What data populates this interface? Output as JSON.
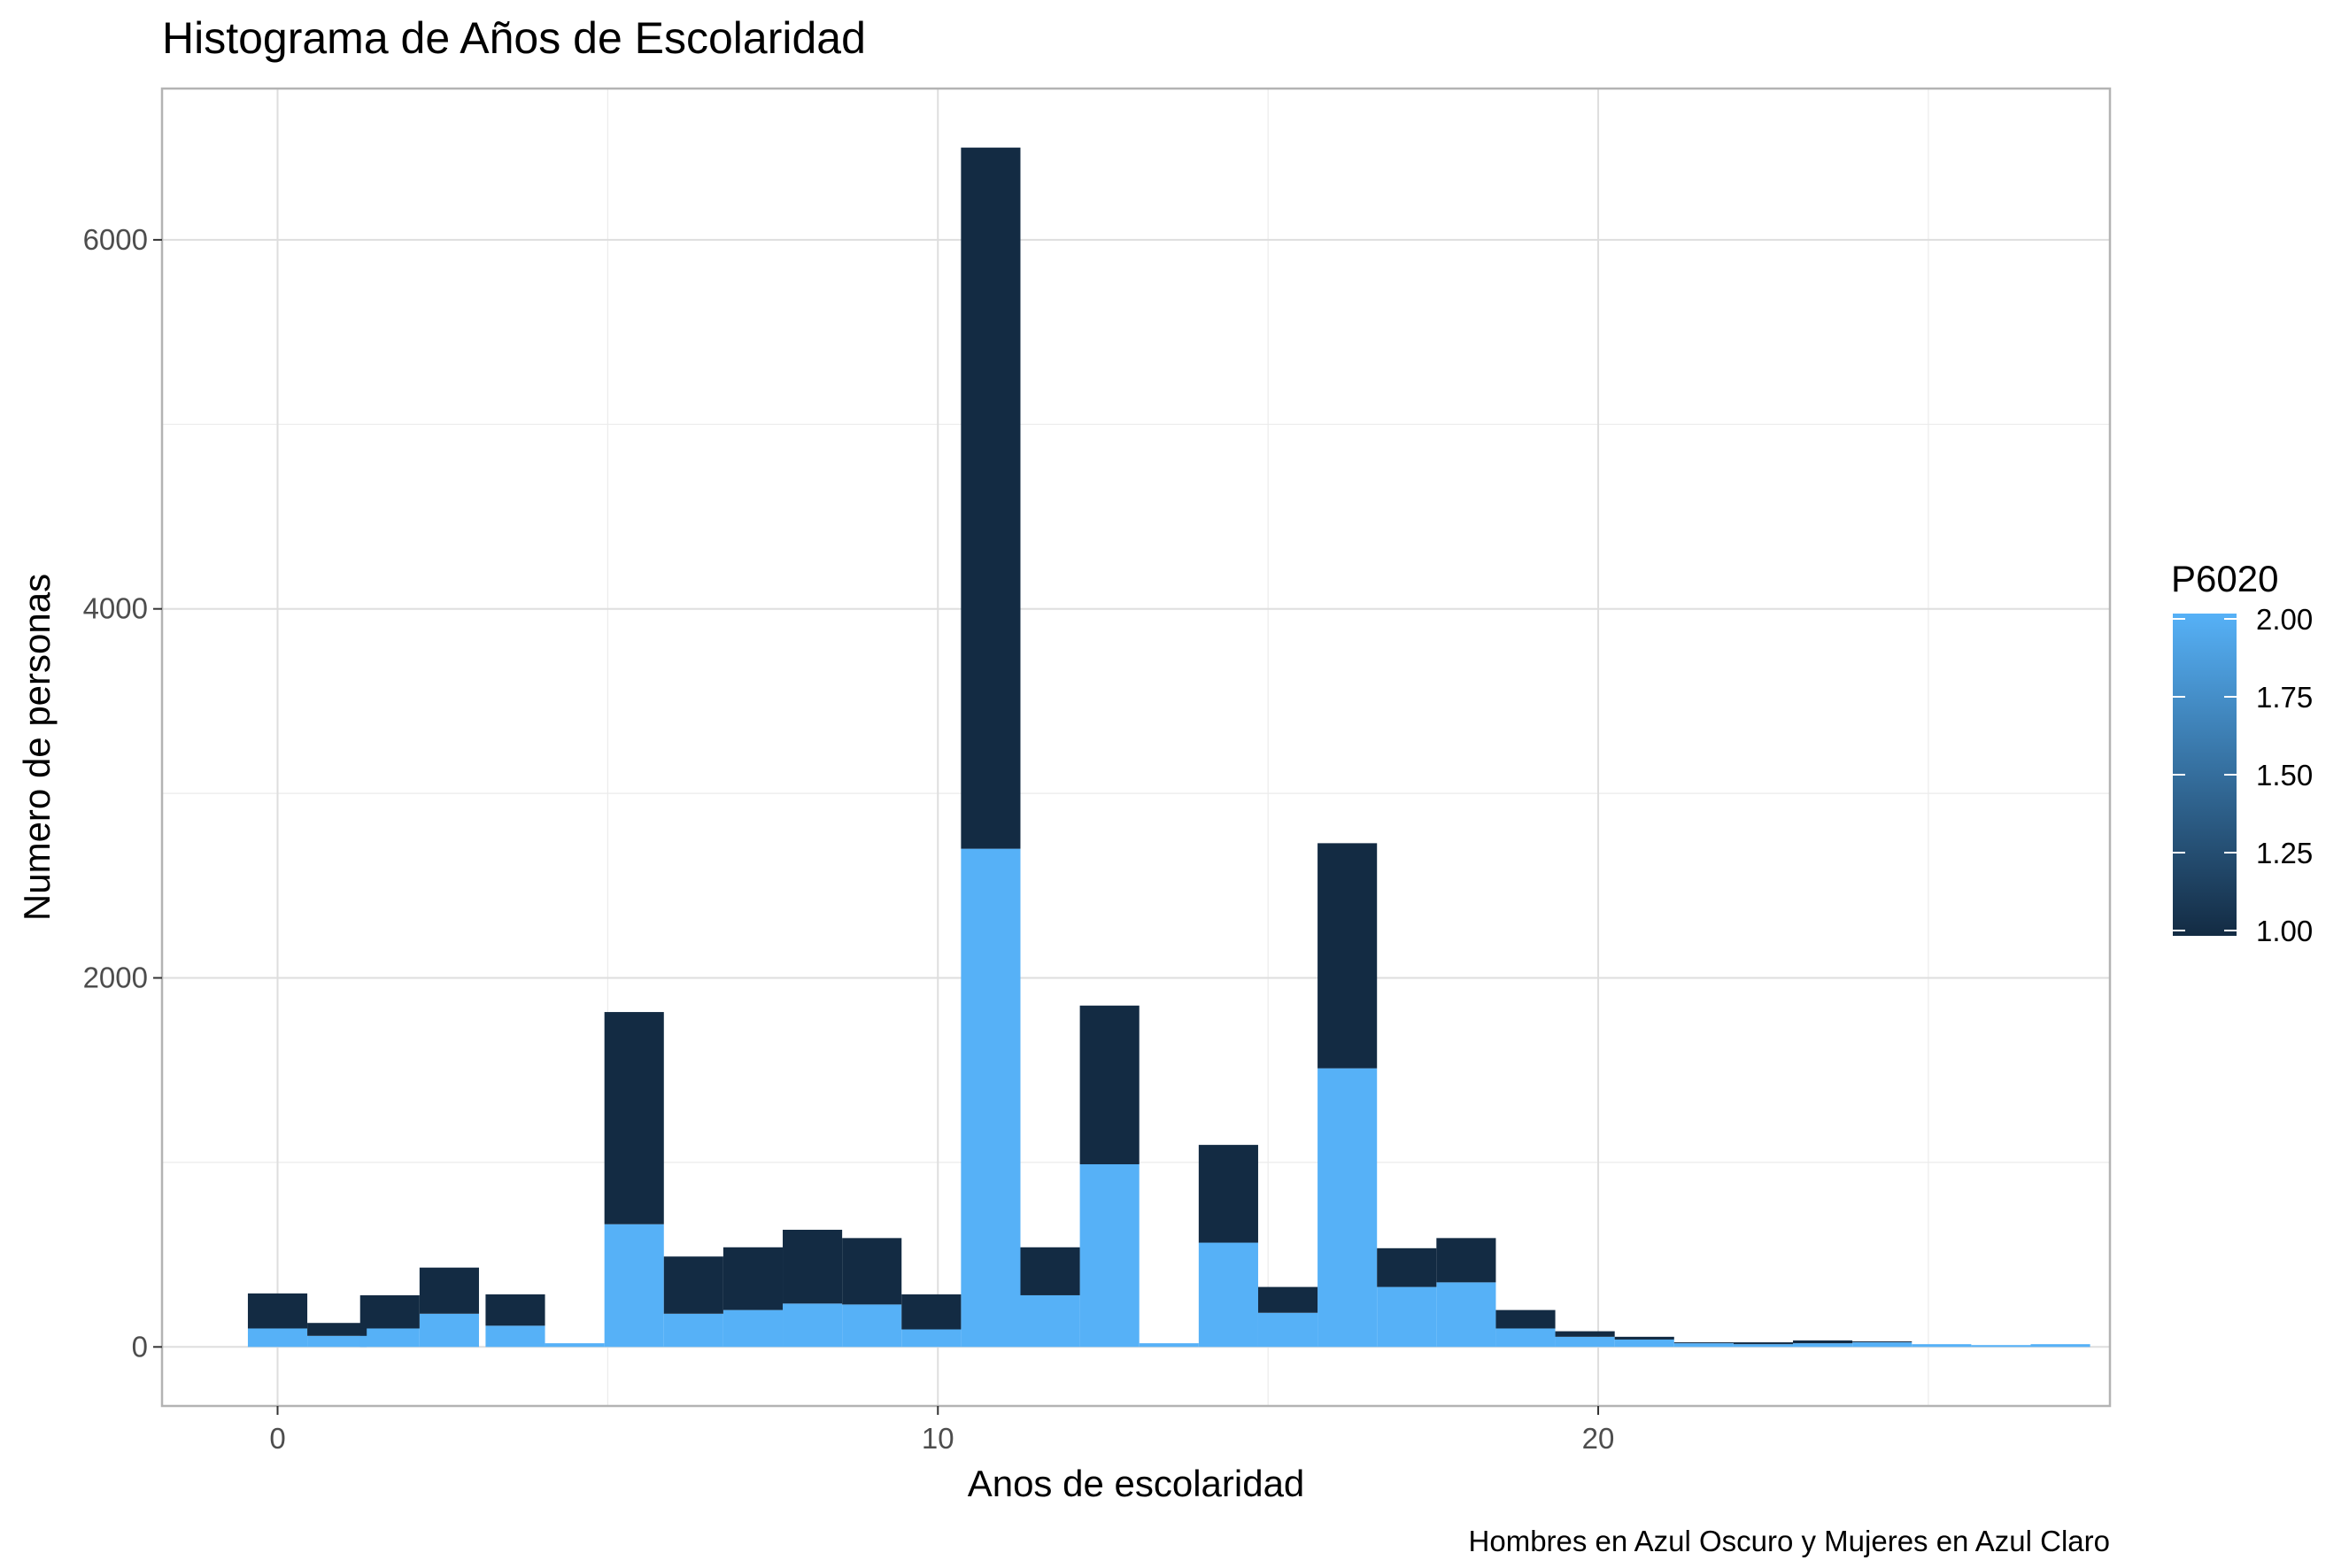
{
  "chart_data": {
    "type": "bar",
    "stacked": true,
    "title": "Histograma de Años de Escolaridad",
    "xlabel": "Anos de escolaridad",
    "ylabel": "Numero de personas",
    "caption": "Hombres en Azul Oscuro  y Mujeres en Azul Claro",
    "xlim": [
      -1.75,
      27.75
    ],
    "ylim": [
      -320,
      6820
    ],
    "x_ticks": [
      0,
      10,
      20
    ],
    "y_ticks": [
      0,
      2000,
      4000,
      6000
    ],
    "x_tick_labels": [
      "0",
      "10",
      "20"
    ],
    "y_tick_labels": [
      "0",
      "2000",
      "4000",
      "6000"
    ],
    "grid": true,
    "bin_width": 0.9,
    "bin_centers": [
      0.0,
      0.9,
      1.7,
      2.6,
      3.6,
      4.5,
      5.4,
      6.3,
      7.2,
      8.1,
      9.0,
      9.9,
      10.8,
      11.7,
      12.6,
      13.5,
      14.4,
      15.3,
      16.2,
      17.1,
      18.0,
      18.9,
      19.8,
      20.7,
      21.6,
      22.5,
      23.4,
      24.3,
      25.2,
      26.1,
      27.0
    ],
    "series": [
      {
        "name": "1.00",
        "color": "#132b43",
        "values": [
          190,
          70,
          180,
          250,
          170,
          0,
          1150,
          310,
          340,
          400,
          360,
          190,
          3800,
          260,
          860,
          0,
          530,
          140,
          1220,
          210,
          240,
          100,
          30,
          15,
          5,
          10,
          15,
          5,
          0,
          0,
          0
        ]
      },
      {
        "name": "2.00",
        "color": "#56b1f7",
        "values": [
          100,
          60,
          100,
          180,
          115,
          20,
          665,
          180,
          200,
          235,
          230,
          95,
          2700,
          280,
          990,
          20,
          565,
          185,
          1510,
          325,
          350,
          100,
          55,
          40,
          20,
          15,
          20,
          25,
          15,
          10,
          15
        ]
      }
    ],
    "legend": {
      "title": "P6020",
      "labels": [
        "2.00",
        "1.75",
        "1.50",
        "1.25",
        "1.00"
      ],
      "values": [
        2.0,
        1.75,
        1.5,
        1.25,
        1.0
      ],
      "color_low": "#132b43",
      "color_high": "#56b1f7",
      "placement": "right"
    }
  }
}
